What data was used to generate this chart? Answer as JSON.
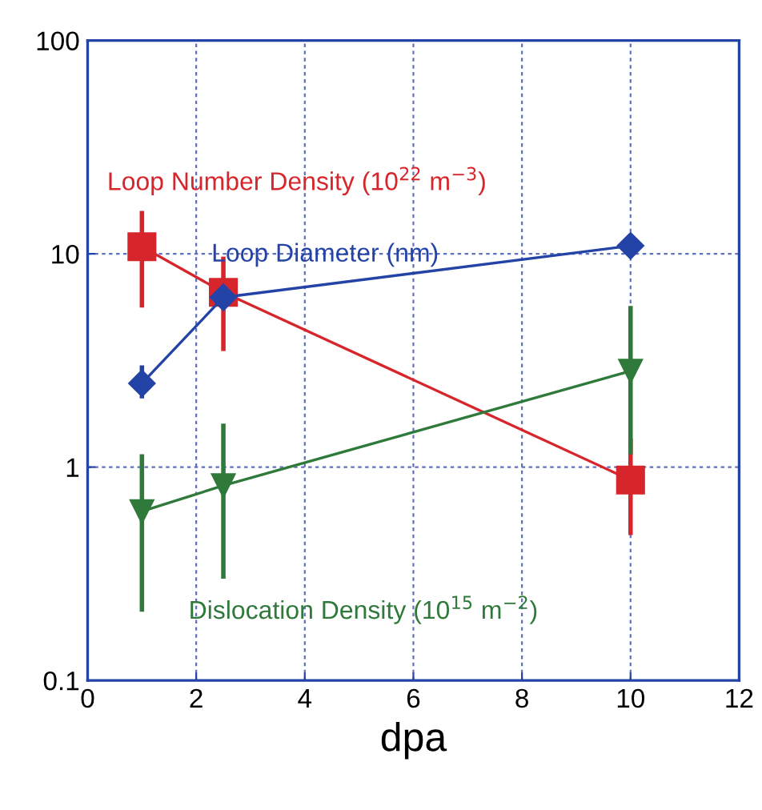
{
  "chart_data": {
    "type": "line",
    "xlabel": "dpa",
    "x": [
      1,
      2.5,
      10
    ],
    "log": "y",
    "xlim": [
      0,
      12
    ],
    "xticks": [
      0,
      2,
      4,
      6,
      8,
      10,
      12
    ],
    "ylim": [
      0.1,
      100
    ],
    "yticks": [
      0.1,
      1,
      10,
      100
    ],
    "grid": true,
    "legend": false,
    "line_style": "solid",
    "series": [
      {
        "name": "Loop Number Density (10$^{22}$ m$^{−3}$)",
        "color": "#d7262b",
        "marker": "square",
        "values": [
          10.8,
          6.6,
          0.87
        ],
        "errors": [
          [
            5.6,
            15.9
          ],
          [
            3.5,
            9.7
          ],
          [
            0.48,
            1.36
          ]
        ]
      },
      {
        "name": "Loop Diameter (nm)",
        "color": "#2443a6",
        "marker": "diamond",
        "values": [
          2.47,
          6.25,
          10.9
        ],
        "errors": [
          [
            2.1,
            3.0
          ],
          null,
          null
        ]
      },
      {
        "name": "Dislocation Density (10$^{15}$ m$^{−2}$)",
        "color": "#2f7a3b",
        "marker": "triangle",
        "values": [
          0.62,
          0.82,
          2.82
        ],
        "errors": [
          [
            0.21,
            1.15
          ],
          [
            0.3,
            1.6
          ],
          [
            1.15,
            5.7
          ]
        ]
      }
    ]
  }
}
